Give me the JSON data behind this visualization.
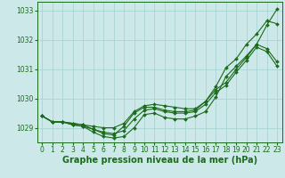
{
  "xlabel": "Graphe pression niveau de la mer (hPa)",
  "bg_color": "#cce8e8",
  "grid_color": "#aad4d4",
  "line_color": "#1a6b1a",
  "x": [
    0,
    1,
    2,
    3,
    4,
    5,
    6,
    7,
    8,
    9,
    10,
    11,
    12,
    13,
    14,
    15,
    16,
    17,
    18,
    19,
    20,
    21,
    22,
    23
  ],
  "series": [
    [
      1029.4,
      1029.2,
      1029.2,
      1029.1,
      1029.05,
      1028.85,
      1028.7,
      1028.65,
      1028.7,
      1029.0,
      1029.45,
      1029.5,
      1029.35,
      1029.3,
      1029.3,
      1029.4,
      1029.55,
      1030.05,
      1030.75,
      1031.1,
      1031.45,
      1031.85,
      1032.5,
      1033.05
    ],
    [
      1029.4,
      1029.2,
      1029.2,
      1029.15,
      1029.1,
      1028.95,
      1028.8,
      1028.75,
      1029.05,
      1029.5,
      1029.7,
      1029.7,
      1029.6,
      1029.55,
      1029.55,
      1029.6,
      1029.9,
      1030.4,
      1031.05,
      1031.35,
      1031.85,
      1032.2,
      1032.65,
      1032.55
    ],
    [
      1029.4,
      1029.2,
      1029.2,
      1029.15,
      1029.1,
      1029.05,
      1029.0,
      1029.0,
      1029.15,
      1029.55,
      1029.75,
      1029.8,
      1029.75,
      1029.7,
      1029.65,
      1029.65,
      1029.9,
      1030.3,
      1030.55,
      1031.0,
      1031.4,
      1031.85,
      1031.7,
      1031.25
    ],
    [
      1029.4,
      1029.2,
      1029.2,
      1029.1,
      1029.05,
      1028.95,
      1028.85,
      1028.8,
      1028.9,
      1029.3,
      1029.6,
      1029.65,
      1029.55,
      1029.5,
      1029.5,
      1029.55,
      1029.8,
      1030.2,
      1030.45,
      1030.9,
      1031.3,
      1031.75,
      1031.6,
      1031.1
    ]
  ],
  "ylim": [
    1028.5,
    1033.3
  ],
  "yticks": [
    1029,
    1030,
    1031,
    1032,
    1033
  ],
  "xticks": [
    0,
    1,
    2,
    3,
    4,
    5,
    6,
    7,
    8,
    9,
    10,
    11,
    12,
    13,
    14,
    15,
    16,
    17,
    18,
    19,
    20,
    21,
    22,
    23
  ],
  "tick_fontsize": 5.5,
  "label_fontsize": 7.0,
  "markersize": 2.0,
  "linewidth": 0.8
}
